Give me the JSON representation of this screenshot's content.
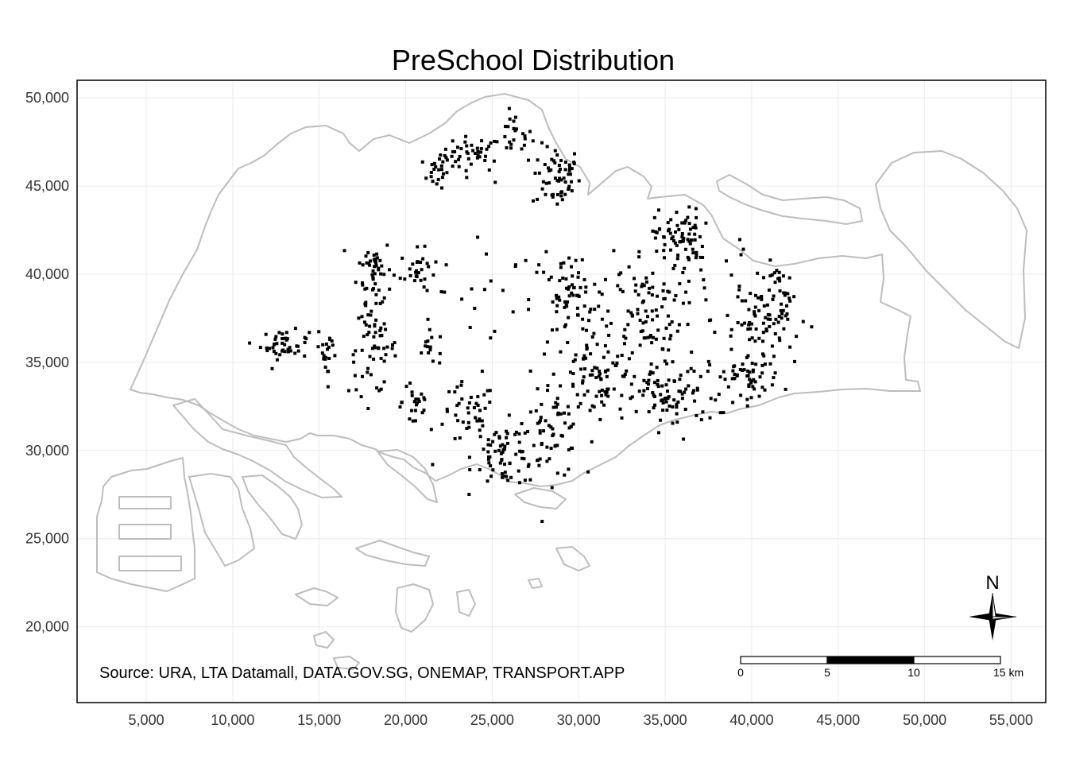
{
  "map": {
    "title": "PreSchool Distribution",
    "source": "Source: URA, LTA Datamall, DATA.GOV.SG, ONEMAP, TRANSPORT.APP",
    "x_ticks": [
      "5,000",
      "10,000",
      "15,000",
      "20,000",
      "25,000",
      "30,000",
      "35,000",
      "40,000",
      "45,000",
      "50,000",
      "55,000"
    ],
    "y_ticks": [
      "50,000",
      "45,000",
      "40,000",
      "35,000",
      "30,000",
      "25,000",
      "20,000"
    ],
    "scale_bar": {
      "labels": [
        "0",
        "5",
        "10",
        "15 km"
      ]
    },
    "north_arrow": {
      "label": "N"
    },
    "colors": {
      "points": "#000000",
      "coastline": "#bdbdbd",
      "grid": "#ebebeb",
      "frame": "#000000"
    }
  },
  "chart_data": {
    "type": "scatter",
    "title": "PreSchool Distribution",
    "xlabel": "",
    "ylabel": "",
    "xlim": [
      1000,
      57000
    ],
    "ylim": [
      15700,
      51000
    ],
    "x_ticks": [
      5000,
      10000,
      15000,
      20000,
      25000,
      30000,
      35000,
      40000,
      45000,
      50000,
      55000
    ],
    "y_ticks": [
      20000,
      25000,
      30000,
      35000,
      40000,
      45000,
      50000
    ],
    "grid": true,
    "series": [
      {
        "clusters": [
          {
            "cx": 23800,
            "cy": 46800,
            "sx": 900,
            "sy": 500,
            "n": 45
          },
          {
            "cx": 21800,
            "cy": 45800,
            "sx": 400,
            "sy": 450,
            "n": 20
          },
          {
            "cx": 26300,
            "cy": 47900,
            "sx": 500,
            "sy": 600,
            "n": 22
          },
          {
            "cx": 28700,
            "cy": 45500,
            "sx": 700,
            "sy": 900,
            "n": 60
          },
          {
            "cx": 18200,
            "cy": 40300,
            "sx": 500,
            "sy": 900,
            "n": 45
          },
          {
            "cx": 20700,
            "cy": 40200,
            "sx": 500,
            "sy": 600,
            "n": 28
          },
          {
            "cx": 13000,
            "cy": 36000,
            "sx": 700,
            "sy": 400,
            "n": 45
          },
          {
            "cx": 15500,
            "cy": 35600,
            "sx": 300,
            "sy": 900,
            "n": 20
          },
          {
            "cx": 18100,
            "cy": 35800,
            "sx": 700,
            "sy": 1300,
            "n": 60
          },
          {
            "cx": 20600,
            "cy": 32800,
            "sx": 400,
            "sy": 1000,
            "n": 22
          },
          {
            "cx": 21500,
            "cy": 35800,
            "sx": 500,
            "sy": 500,
            "n": 15
          },
          {
            "cx": 23600,
            "cy": 32000,
            "sx": 800,
            "sy": 900,
            "n": 40
          },
          {
            "cx": 25700,
            "cy": 29800,
            "sx": 900,
            "sy": 900,
            "n": 65
          },
          {
            "cx": 28400,
            "cy": 30800,
            "sx": 900,
            "sy": 1200,
            "n": 60
          },
          {
            "cx": 29600,
            "cy": 38500,
            "sx": 1200,
            "sy": 1400,
            "n": 75
          },
          {
            "cx": 31000,
            "cy": 34200,
            "sx": 1300,
            "sy": 1300,
            "n": 85
          },
          {
            "cx": 33800,
            "cy": 37800,
            "sx": 1100,
            "sy": 1500,
            "n": 80
          },
          {
            "cx": 35800,
            "cy": 42100,
            "sx": 700,
            "sy": 800,
            "n": 70
          },
          {
            "cx": 35400,
            "cy": 33000,
            "sx": 1300,
            "sy": 900,
            "n": 80
          },
          {
            "cx": 39600,
            "cy": 34200,
            "sx": 1100,
            "sy": 700,
            "n": 60
          },
          {
            "cx": 40400,
            "cy": 37300,
            "sx": 700,
            "sy": 900,
            "n": 45
          },
          {
            "cx": 41900,
            "cy": 38300,
            "sx": 600,
            "sy": 1200,
            "n": 45
          },
          {
            "cx": 37000,
            "cy": 39300,
            "sx": 2000,
            "sy": 1700,
            "n": 40
          },
          {
            "cx": 26000,
            "cy": 38000,
            "sx": 3500,
            "sy": 3000,
            "n": 30
          }
        ]
      }
    ]
  }
}
